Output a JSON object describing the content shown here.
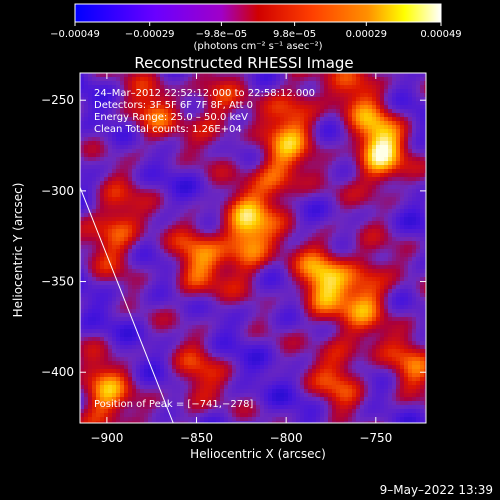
{
  "chart_data": {
    "type": "heatmap",
    "title": "Reconstructed RHESSI Image",
    "xlabel": "Heliocentric X (arcsec)",
    "ylabel": "Heliocentric Y (arcsec)",
    "xlim": [
      -915,
      -722
    ],
    "ylim": [
      -428,
      -235
    ],
    "x_ticks": [
      -900,
      -850,
      -800,
      -750
    ],
    "y_ticks": [
      -250,
      -300,
      -350,
      -400
    ],
    "x_tick_labels": [
      "−900",
      "−850",
      "−800",
      "−750"
    ],
    "y_tick_labels": [
      "−250",
      "−300",
      "−350",
      "−400"
    ],
    "colorbar": {
      "range": [
        -0.00049,
        0.00049
      ],
      "ticks": [
        -0.00049,
        -0.00029,
        -9.8e-05,
        9.8e-05,
        0.00029,
        0.00049
      ],
      "tick_labels": [
        "−0.00049",
        "−0.00029",
        "−9.8e−05",
        "9.8e−05",
        "0.00029",
        "0.00049"
      ],
      "unit_label": "(photons cm⁻² s⁻¹ asec⁻²)",
      "colors": [
        "#0000ff",
        "#6a00ff",
        "#a000c8",
        "#ff0000",
        "#ff8000",
        "#ffff00",
        "#ffffff"
      ]
    },
    "annotations": [
      "24–Mar–2012 22:52:12.000 to 22:58:12.000",
      "Detectors: 3F 5F 6F 7F 8F, Att 0",
      "Energy Range: 25.0 – 50.0 keV",
      "Clean     Total counts: 1.26E+04"
    ],
    "peak_label": "Position of Peak = [−741,−278]",
    "peak": [
      -741,
      -278
    ],
    "limb_line": [
      [
        -915,
        -298
      ],
      [
        -863,
        -428
      ]
    ],
    "hotspots": [
      {
        "x": -748,
        "y": -278,
        "w": 1.0
      },
      {
        "x": -822,
        "y": -325,
        "w": 0.95
      },
      {
        "x": -805,
        "y": -290,
        "w": 0.65
      },
      {
        "x": -795,
        "y": -258,
        "w": 0.6
      },
      {
        "x": -780,
        "y": -350,
        "w": 0.8
      },
      {
        "x": -755,
        "y": -355,
        "w": 0.7
      },
      {
        "x": -850,
        "y": -340,
        "w": 0.6
      },
      {
        "x": -895,
        "y": -320,
        "w": 0.7
      },
      {
        "x": -902,
        "y": -415,
        "w": 0.75
      },
      {
        "x": -875,
        "y": -255,
        "w": 0.5
      },
      {
        "x": -840,
        "y": -255,
        "w": 0.5
      },
      {
        "x": -770,
        "y": -400,
        "w": 0.55
      },
      {
        "x": -730,
        "y": -395,
        "w": 0.5
      },
      {
        "x": -850,
        "y": -405,
        "w": 0.45
      },
      {
        "x": -760,
        "y": -240,
        "w": 0.5
      }
    ]
  },
  "footer": {
    "date_stamp": "9–May–2022 13:39"
  }
}
